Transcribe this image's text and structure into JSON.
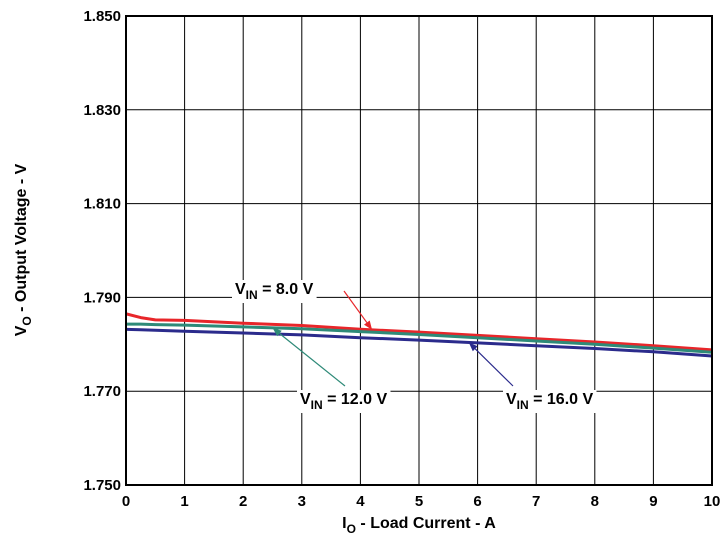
{
  "chart_data": {
    "type": "line",
    "xlabel": {
      "main": "I",
      "sub": "O",
      "rest": " - Load Current - A"
    },
    "ylabel": {
      "main": "V",
      "sub": "O",
      "rest": " - Output Voltage - V"
    },
    "xlim": [
      0,
      10
    ],
    "ylim": [
      1.75,
      1.85
    ],
    "x_ticks": [
      "0",
      "1",
      "2",
      "3",
      "4",
      "5",
      "6",
      "7",
      "8",
      "9",
      "10"
    ],
    "y_ticks": [
      "1.750",
      "1.770",
      "1.790",
      "1.810",
      "1.830",
      "1.850"
    ],
    "grid": true,
    "x": [
      0,
      0.25,
      0.5,
      1,
      2,
      3,
      4,
      5,
      6,
      7,
      8,
      9,
      10
    ],
    "series": [
      {
        "name": "V_IN = 8.0 V",
        "color": "#e8262a",
        "values": [
          1.7865,
          1.7857,
          1.7852,
          1.7851,
          1.7845,
          1.784,
          1.7832,
          1.7826,
          1.7819,
          1.7812,
          1.7805,
          1.7797,
          1.7788
        ]
      },
      {
        "name": "V_IN = 12.0 V",
        "color": "#2e8a78",
        "values": [
          1.7843,
          1.7843,
          1.7842,
          1.7841,
          1.7837,
          1.7833,
          1.7827,
          1.7821,
          1.7814,
          1.7807,
          1.78,
          1.7792,
          1.7783
        ]
      },
      {
        "name": "V_IN = 16.0 V",
        "color": "#2b2b8c",
        "values": [
          1.7832,
          1.7831,
          1.783,
          1.7828,
          1.7824,
          1.782,
          1.7814,
          1.7809,
          1.7803,
          1.7797,
          1.7791,
          1.7784,
          1.7775
        ]
      }
    ],
    "annotations": [
      {
        "main": "V",
        "sub": "IN",
        "rest": " = 8.0 V",
        "series": 0,
        "color": "#e8262a",
        "arrow_x": 4.2
      },
      {
        "main": "V",
        "sub": "IN",
        "rest": " = 12.0 V",
        "series": 1,
        "color": "#2e8a78",
        "arrow_x": 2.5
      },
      {
        "main": "V",
        "sub": "IN",
        "rest": " = 16.0 V",
        "series": 2,
        "color": "#2b2b8c",
        "arrow_x": 5.85
      }
    ]
  }
}
